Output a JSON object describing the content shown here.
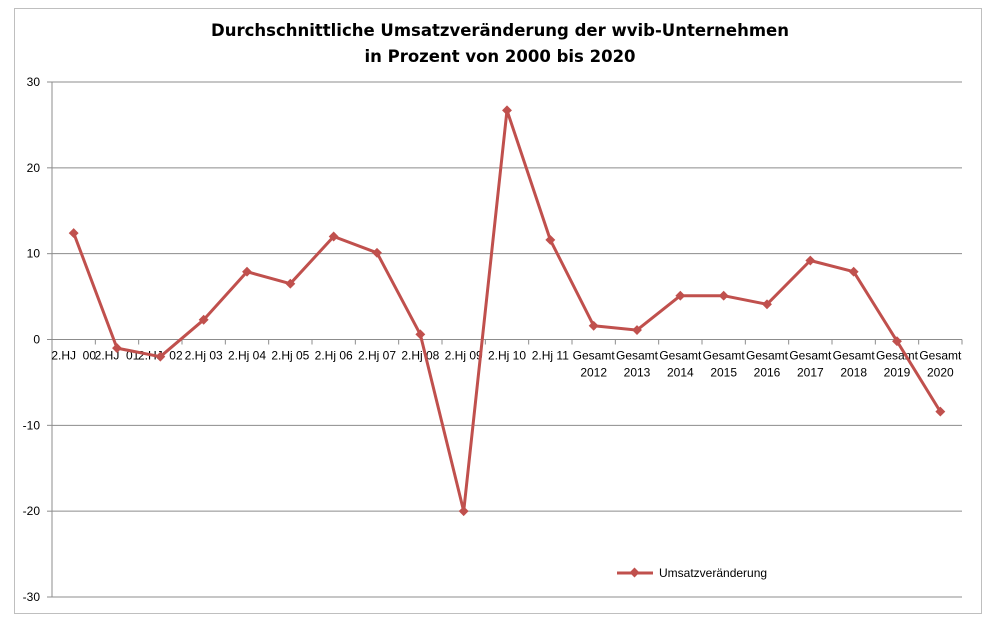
{
  "chart_data": {
    "type": "line",
    "title_lines": [
      "Durchschnittliche Umsatzveränderung der wvib-Unternehmen",
      "in Prozent von 2000 bis 2020"
    ],
    "categories": [
      [
        "2.HJ  00"
      ],
      [
        "2.HJ  01"
      ],
      [
        "2.HJ  02"
      ],
      [
        "2.Hj 03"
      ],
      [
        "2.Hj 04"
      ],
      [
        "2.Hj 05"
      ],
      [
        "2.Hj 06"
      ],
      [
        "2.Hj 07"
      ],
      [
        "2.Hj 08"
      ],
      [
        "2.Hj 09"
      ],
      [
        "2.Hj 10"
      ],
      [
        "2.Hj 11"
      ],
      [
        "Gesamt",
        "2012"
      ],
      [
        "Gesamt",
        "2013"
      ],
      [
        "Gesamt",
        "2014"
      ],
      [
        "Gesamt",
        "2015"
      ],
      [
        "Gesamt",
        "2016"
      ],
      [
        "Gesamt",
        "2017"
      ],
      [
        "Gesamt",
        "2018"
      ],
      [
        "Gesamt",
        "2019"
      ],
      [
        "Gesamt",
        "2020"
      ]
    ],
    "series": [
      {
        "name": "Umsatzveränderung",
        "color": "#c0504d",
        "values": [
          12.4,
          -1.0,
          -2.0,
          2.3,
          7.9,
          6.5,
          12.0,
          10.1,
          0.6,
          -20.0,
          26.7,
          11.6,
          1.6,
          1.1,
          5.1,
          5.1,
          4.1,
          9.2,
          7.9,
          -0.2,
          -8.4
        ]
      }
    ],
    "ylim": [
      -30,
      30
    ],
    "yticks": [
      30,
      20,
      10,
      0,
      -10,
      -20,
      -30
    ],
    "grid": true,
    "legend_position": "bottom-right"
  }
}
